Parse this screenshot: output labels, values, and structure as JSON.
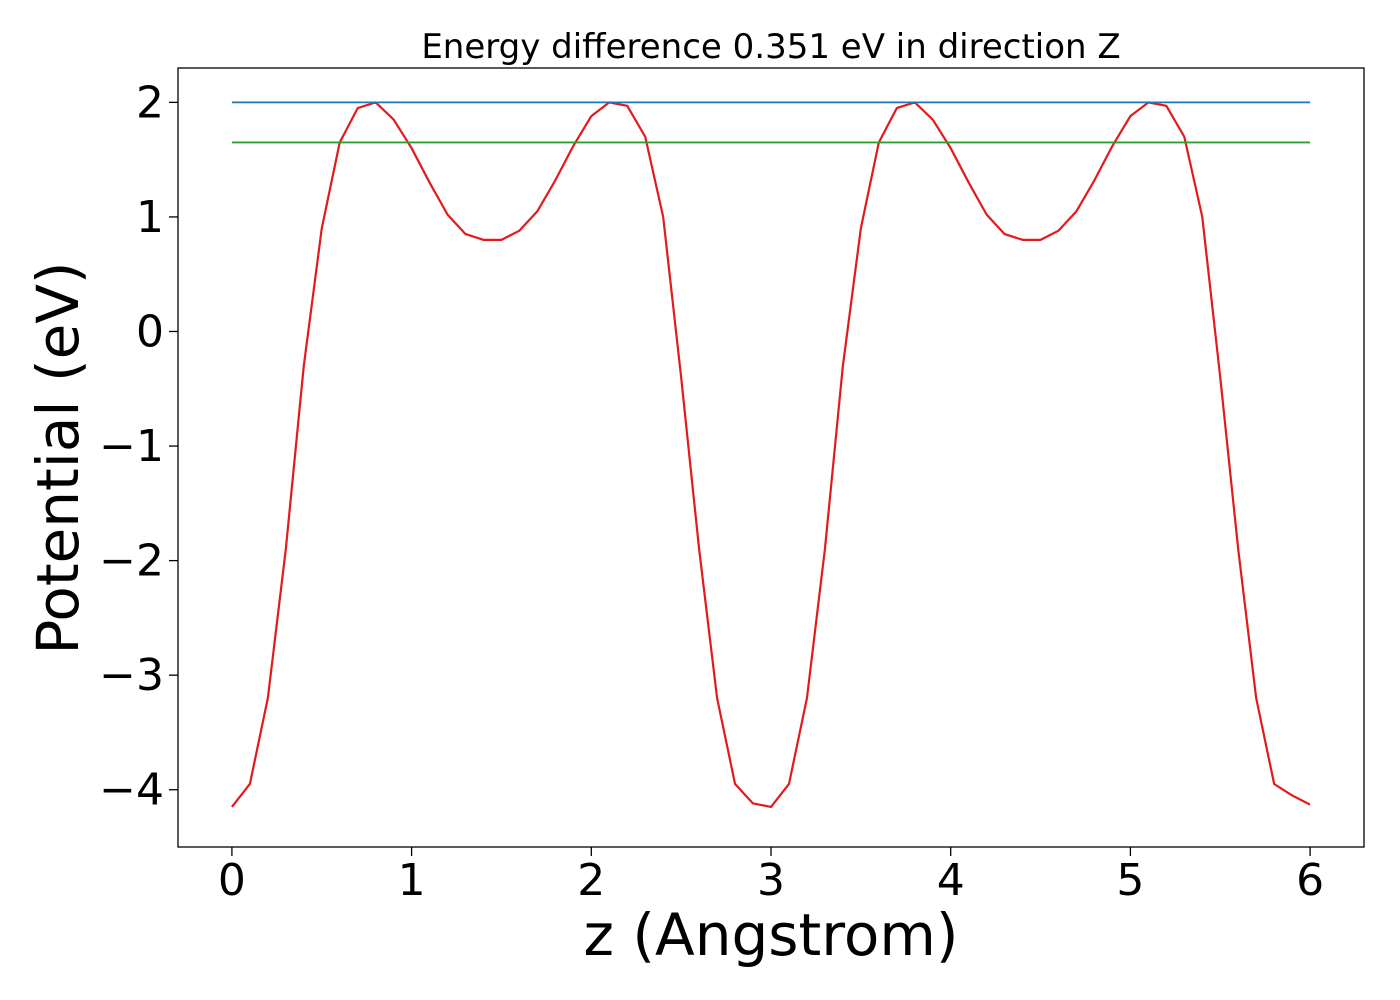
{
  "chart_data": {
    "type": "line",
    "title": "Energy difference 0.351 eV in direction Z",
    "xlabel": "z (Angstrom)",
    "ylabel": "Potential (eV)",
    "xlim": [
      -0.3,
      6.3
    ],
    "ylim": [
      -4.5,
      2.3
    ],
    "x_ticks": [
      0,
      1,
      2,
      3,
      4,
      5,
      6
    ],
    "y_ticks": [
      -4,
      -3,
      -2,
      -1,
      0,
      1,
      2
    ],
    "x_tick_labels": [
      "0",
      "1",
      "2",
      "3",
      "4",
      "5",
      "6"
    ],
    "y_tick_labels": [
      "−4",
      "−3",
      "−2",
      "−1",
      "0",
      "1",
      "2"
    ],
    "grid": false,
    "series": [
      {
        "color": "#e31a1c",
        "kind": "curve",
        "x": [
          0.0,
          0.1,
          0.2,
          0.3,
          0.4,
          0.5,
          0.6,
          0.7,
          0.8,
          0.9,
          1.0,
          1.1,
          1.2,
          1.3,
          1.4,
          1.5,
          1.6,
          1.7,
          1.8,
          1.9,
          2.0,
          2.1,
          2.2,
          2.3,
          2.4,
          2.5,
          2.6,
          2.7,
          2.8,
          2.9,
          3.0,
          3.1,
          3.2,
          3.3,
          3.4,
          3.5,
          3.6,
          3.7,
          3.8,
          3.9,
          4.0,
          4.1,
          4.2,
          4.3,
          4.4,
          4.5,
          4.6,
          4.7,
          4.8,
          4.9,
          5.0,
          5.1,
          5.2,
          5.3,
          5.4,
          5.5,
          5.6,
          5.7,
          5.8,
          5.9,
          6.0
        ],
        "y": [
          -4.15,
          -3.95,
          -3.2,
          -1.9,
          -0.3,
          0.9,
          1.65,
          1.95,
          2.0,
          1.85,
          1.6,
          1.3,
          1.02,
          0.85,
          0.8,
          0.8,
          0.88,
          1.05,
          1.32,
          1.62,
          1.88,
          2.0,
          1.97,
          1.7,
          1.0,
          -0.4,
          -1.9,
          -3.2,
          -3.95,
          -4.12,
          -4.15,
          -3.95,
          -3.2,
          -1.9,
          -0.3,
          0.9,
          1.65,
          1.95,
          2.0,
          1.85,
          1.6,
          1.3,
          1.02,
          0.85,
          0.8,
          0.8,
          0.88,
          1.05,
          1.32,
          1.62,
          1.88,
          2.0,
          1.97,
          1.7,
          1.0,
          -0.4,
          -1.9,
          -3.2,
          -3.95,
          -4.05,
          -4.13
        ]
      },
      {
        "color": "#1f77b4",
        "kind": "horizontal-line",
        "x": [
          0,
          6
        ],
        "y": [
          2.0,
          2.0
        ]
      },
      {
        "color": "#2ca02c",
        "kind": "horizontal-line",
        "x": [
          0,
          6
        ],
        "y": [
          1.65,
          1.65
        ]
      }
    ]
  }
}
